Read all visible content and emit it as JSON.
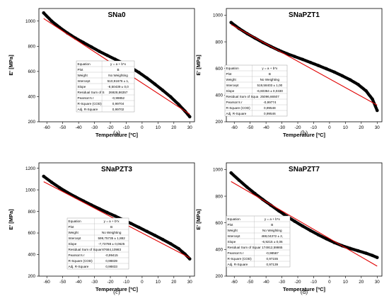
{
  "chart_data": [
    {
      "type": "scatter",
      "panel": "(a)",
      "title": "SNa0",
      "xlabel": "Temperature [ºC]",
      "ylabel": "E' [MPa]",
      "xlim": [
        -65,
        33
      ],
      "ylim": [
        200,
        1100
      ],
      "xticks": [
        -60,
        -50,
        -40,
        -30,
        -20,
        -10,
        0,
        10,
        20,
        30
      ],
      "yticks": [
        200,
        400,
        600,
        800,
        1000
      ],
      "series": [
        {
          "color": "#000000",
          "x": [
            -62,
            -57,
            -52,
            -47,
            -42,
            -37,
            -32,
            -27,
            -22,
            -17,
            -12,
            -7,
            -2,
            3,
            8,
            13,
            18,
            23,
            27,
            30
          ],
          "values": [
            1065,
            1000,
            950,
            905,
            865,
            830,
            795,
            760,
            728,
            697,
            665,
            630,
            592,
            548,
            500,
            450,
            398,
            338,
            285,
            240
          ]
        },
        {
          "color": "#e00000",
          "x": [
            -62,
            30
          ],
          "values": [
            1020,
            260
          ]
        }
      ],
      "fit_table": [
        [
          "Equation",
          "y = a + b*x"
        ],
        [
          "Plot",
          "B"
        ],
        [
          "Weight",
          "No Weighting"
        ],
        [
          "Intercept",
          "510,91676 ± 1,"
        ],
        [
          "Slope",
          "-8,50439 ± 0,0"
        ],
        [
          "Residual Sum of S",
          "26928,86357"
        ],
        [
          "Pearson's r",
          "-0,99852"
        ],
        [
          "R-Square (COD)",
          "0,99704"
        ],
        [
          "Adj. R-Square",
          "0,99702"
        ]
      ]
    },
    {
      "type": "scatter",
      "panel": "(b)",
      "title": "SNaPZT1",
      "xlabel": "Temperature [ºC]",
      "ylabel": "E' [MPa]",
      "xlim": [
        -65,
        33
      ],
      "ylim": [
        200,
        1050
      ],
      "xticks": [
        -60,
        -50,
        -40,
        -30,
        -20,
        -10,
        0,
        10,
        20,
        30
      ],
      "yticks": [
        200,
        400,
        600,
        800,
        1000
      ],
      "series": [
        {
          "color": "#000000",
          "x": [
            -62,
            -57,
            -52,
            -47,
            -42,
            -37,
            -32,
            -27,
            -22,
            -17,
            -12,
            -7,
            -2,
            3,
            8,
            13,
            18,
            23,
            27,
            30
          ],
          "values": [
            945,
            900,
            862,
            828,
            795,
            765,
            737,
            712,
            690,
            668,
            645,
            622,
            598,
            573,
            545,
            515,
            480,
            432,
            370,
            285
          ]
        },
        {
          "color": "#e00000",
          "x": [
            -62,
            30
          ],
          "values": [
            930,
            325
          ]
        }
      ],
      "fit_table": [
        [
          "Equation",
          "y = a + b*x"
        ],
        [
          "Plot",
          "B"
        ],
        [
          "Weight",
          "No Weighting"
        ],
        [
          "Intercept",
          "519,58403 ± 1,00"
        ],
        [
          "Slope",
          "-6,60364 ± 0,0330"
        ],
        [
          "Residual Sum of Squa",
          "25096,66507"
        ],
        [
          "Pearson's r",
          "-0,99774"
        ],
        [
          "R-Square (COD)",
          "0,99548"
        ],
        [
          "Adj. R-Square",
          "0,99546"
        ]
      ]
    },
    {
      "type": "scatter",
      "panel": "(c)",
      "title": "SNaPZT3",
      "xlabel": "Temperature [ºC]",
      "ylabel": "E' [MPa]",
      "xlim": [
        -65,
        33
      ],
      "ylim": [
        200,
        1250
      ],
      "xticks": [
        -60,
        -50,
        -40,
        -30,
        -20,
        -10,
        0,
        10,
        20,
        30
      ],
      "yticks": [
        200,
        400,
        600,
        800,
        1000,
        1200
      ],
      "series": [
        {
          "color": "#000000",
          "x": [
            -62,
            -57,
            -52,
            -47,
            -42,
            -37,
            -32,
            -27,
            -22,
            -17,
            -12,
            -7,
            -2,
            3,
            8,
            13,
            18,
            23,
            27,
            30
          ],
          "values": [
            1125,
            1070,
            1020,
            975,
            935,
            897,
            860,
            825,
            790,
            757,
            722,
            688,
            652,
            615,
            578,
            540,
            500,
            455,
            405,
            360
          ]
        },
        {
          "color": "#e00000",
          "x": [
            -62,
            30
          ],
          "values": [
            1075,
            370
          ]
        }
      ],
      "fit_table": [
        [
          "Equation",
          "y = a + b*x"
        ],
        [
          "Plot",
          "B"
        ],
        [
          "Weight",
          "No Weighting"
        ],
        [
          "Intercept",
          "599,75735 ± 1,882"
        ],
        [
          "Slope",
          "-7,73788 ± 0,0625"
        ],
        [
          "Residual Sum of Squar",
          "87684,10983"
        ],
        [
          "Pearson's r",
          "-0,99415"
        ],
        [
          "R-Square (COD)",
          "0,98839"
        ],
        [
          "Adj. R-Square",
          "0,98833"
        ]
      ]
    },
    {
      "type": "scatter",
      "panel": "(d)",
      "title": "SNaPZT7",
      "xlabel": "Temperature [ºC]",
      "ylabel": "E' [MPa]",
      "xlim": [
        -65,
        33
      ],
      "ylim": [
        200,
        1050
      ],
      "xticks": [
        -60,
        -50,
        -40,
        -30,
        -20,
        -10,
        0,
        10,
        20,
        30
      ],
      "yticks": [
        200,
        400,
        600,
        800,
        1000
      ],
      "series": [
        {
          "color": "#000000",
          "x": [
            -62,
            -57,
            -52,
            -47,
            -42,
            -37,
            -32,
            -27,
            -22,
            -17,
            -12,
            -7,
            -2,
            3,
            8,
            13,
            18,
            23,
            27,
            30
          ],
          "values": [
            975,
            920,
            868,
            820,
            775,
            732,
            690,
            650,
            612,
            576,
            542,
            510,
            480,
            452,
            428,
            408,
            390,
            372,
            355,
            340
          ]
        },
        {
          "color": "#e00000",
          "x": [
            -62,
            30
          ],
          "values": [
            910,
            275
          ]
        }
      ],
      "fit_table": [
        [
          "Equation",
          "y = a + b*x"
        ],
        [
          "Plot",
          "B"
        ],
        [
          "Weight",
          "No Weighting"
        ],
        [
          "Intercept",
          "488,04372 ± 2,"
        ],
        [
          "Slope",
          "-6,9215 ± 0,06"
        ],
        [
          "Residual Sum of Squar",
          "174912,59865"
        ],
        [
          "Pearson's r",
          "-0,98567"
        ],
        [
          "R-Square (COD)",
          "0,97155"
        ],
        [
          "Adj. R-Square",
          "0,97139"
        ]
      ]
    }
  ]
}
